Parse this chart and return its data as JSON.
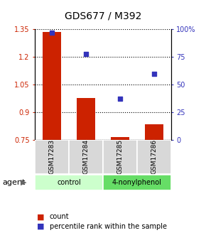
{
  "title": "GDS677 / M392",
  "samples": [
    "GSM17283",
    "GSM17284",
    "GSM17285",
    "GSM17286"
  ],
  "bar_values": [
    1.335,
    0.975,
    0.765,
    0.835
  ],
  "dot_values": [
    97,
    78,
    37,
    60
  ],
  "ylim_left": [
    0.75,
    1.35
  ],
  "ylim_right": [
    0,
    100
  ],
  "yticks_left": [
    0.75,
    0.9,
    1.05,
    1.2,
    1.35
  ],
  "yticks_right": [
    0,
    25,
    50,
    75,
    100
  ],
  "ytick_labels_left": [
    "0.75",
    "0.9",
    "1.05",
    "1.2",
    "1.35"
  ],
  "ytick_labels_right": [
    "0",
    "25",
    "50",
    "75",
    "100%"
  ],
  "bar_color": "#cc2200",
  "dot_color": "#3333bb",
  "bar_width": 0.55,
  "groups": [
    {
      "label": "control",
      "samples": [
        0,
        1
      ],
      "color": "#ccffcc"
    },
    {
      "label": "4-nonylphenol",
      "samples": [
        2,
        3
      ],
      "color": "#66dd66"
    }
  ],
  "agent_label": "agent",
  "legend_bar_label": "count",
  "legend_dot_label": "percentile rank within the sample",
  "sample_bg": "#d8d8d8",
  "plot_bg": "#ffffff",
  "fig_bg": "#ffffff"
}
